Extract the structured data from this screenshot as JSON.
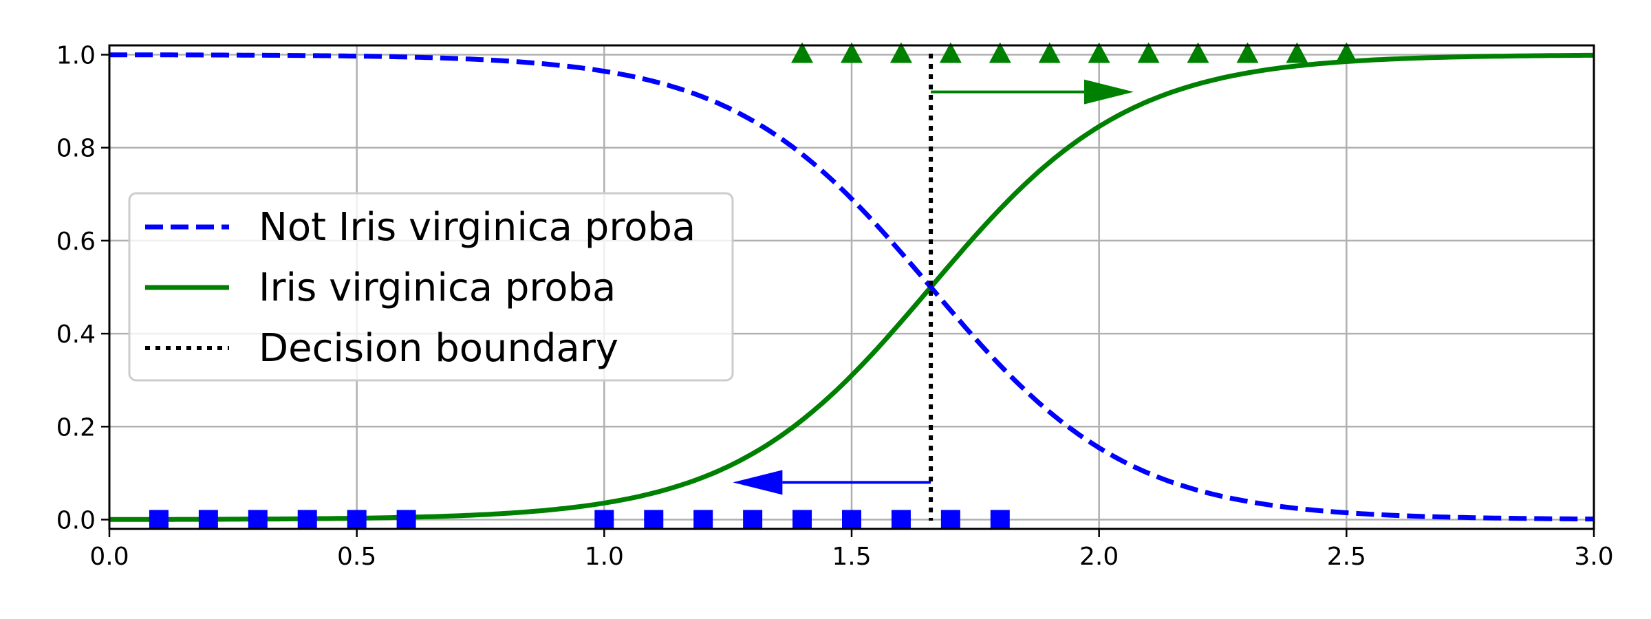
{
  "chart_data": {
    "type": "line",
    "title": "",
    "xlabel": "",
    "ylabel": "",
    "xlim": [
      0.0,
      3.0
    ],
    "ylim": [
      -0.02,
      1.02
    ],
    "grid": true,
    "legend_position": "center-left",
    "x_ticks": [
      "0.0",
      "0.5",
      "1.0",
      "1.5",
      "2.0",
      "2.5",
      "3.0"
    ],
    "y_ticks": [
      "0.0",
      "0.2",
      "0.4",
      "0.6",
      "0.8",
      "1.0"
    ],
    "logistic_curve": {
      "boundary": 1.66,
      "scale": 0.2
    },
    "series": [
      {
        "name": "Not Iris virginica proba",
        "style": "dashed",
        "color": "#0000ff",
        "decreasing": true
      },
      {
        "name": "Iris virginica proba",
        "style": "solid",
        "color": "#008000",
        "decreasing": false
      },
      {
        "name": "Decision boundary",
        "style": "dotted",
        "color": "#000000",
        "x": 1.66
      }
    ],
    "class_0_points": {
      "marker": "square",
      "color": "#0000ff",
      "y": 0.0,
      "x": [
        0.1,
        0.2,
        0.3,
        0.4,
        0.5,
        0.6,
        1.0,
        1.1,
        1.2,
        1.3,
        1.4,
        1.5,
        1.6,
        1.7,
        1.8
      ]
    },
    "class_1_points": {
      "marker": "triangle",
      "color": "#008000",
      "y": 1.0,
      "x": [
        1.4,
        1.5,
        1.6,
        1.7,
        1.8,
        1.9,
        2.0,
        2.1,
        2.2,
        2.3,
        2.4,
        2.5
      ]
    },
    "arrows": [
      {
        "name": "left-arrow",
        "color": "#0000ff",
        "from": [
          1.66,
          0.08
        ],
        "to": [
          1.26,
          0.08
        ]
      },
      {
        "name": "right-arrow",
        "color": "#008000",
        "from": [
          1.66,
          0.92
        ],
        "to": [
          2.07,
          0.92
        ]
      }
    ]
  }
}
